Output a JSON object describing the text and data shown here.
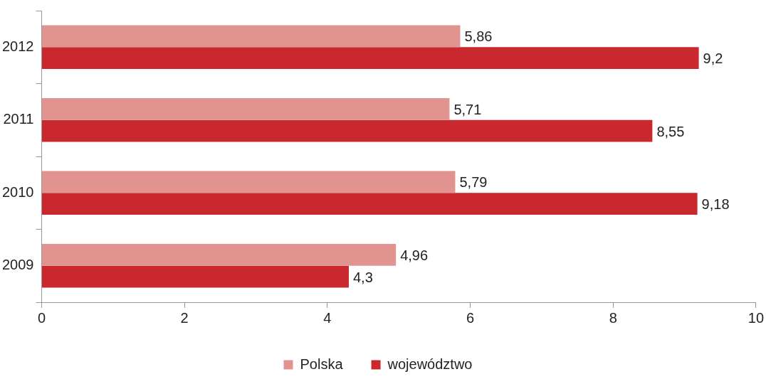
{
  "chart_data": {
    "type": "bar",
    "orientation": "horizontal",
    "categories": [
      "2012",
      "2011",
      "2010",
      "2009"
    ],
    "series": [
      {
        "name": "województwo",
        "color": "#c9282e",
        "values": [
          9.2,
          8.55,
          9.18,
          4.3
        ],
        "value_labels": [
          "9,2",
          "8,55",
          "9,18",
          "4,3"
        ]
      },
      {
        "name": "Polska",
        "color": "#e0938f",
        "values": [
          5.86,
          5.71,
          5.79,
          4.96
        ],
        "value_labels": [
          "5,86",
          "5,71",
          "5,79",
          "4,96"
        ]
      }
    ],
    "xlim": [
      0,
      10
    ],
    "xticks": [
      0,
      2,
      4,
      6,
      8,
      10
    ],
    "grid": false,
    "legend": "bottom"
  }
}
